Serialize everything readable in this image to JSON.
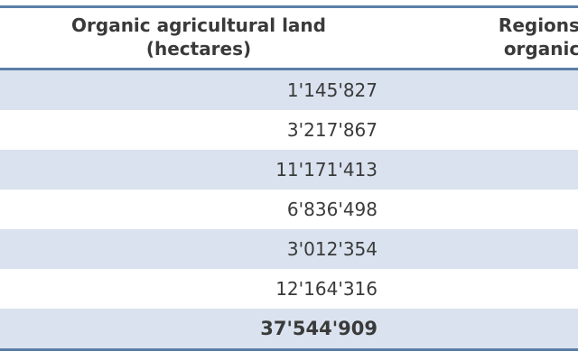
{
  "header": {
    "col1_line1": "Organic agricultural land",
    "col1_line2": "(hectares)",
    "col2_line1": "Regions'",
    "col2_line2": "organic"
  },
  "rows": [
    {
      "value": "1'145'827"
    },
    {
      "value": "3'217'867"
    },
    {
      "value": "11'171'413"
    },
    {
      "value": "6'836'498"
    },
    {
      "value": "3'012'354"
    },
    {
      "value": "12'164'316"
    },
    {
      "value": "37'544'909"
    }
  ],
  "colors": {
    "rule": "#5b7fa6",
    "shade": "#d9e2ee",
    "text": "#3a3a3a"
  }
}
